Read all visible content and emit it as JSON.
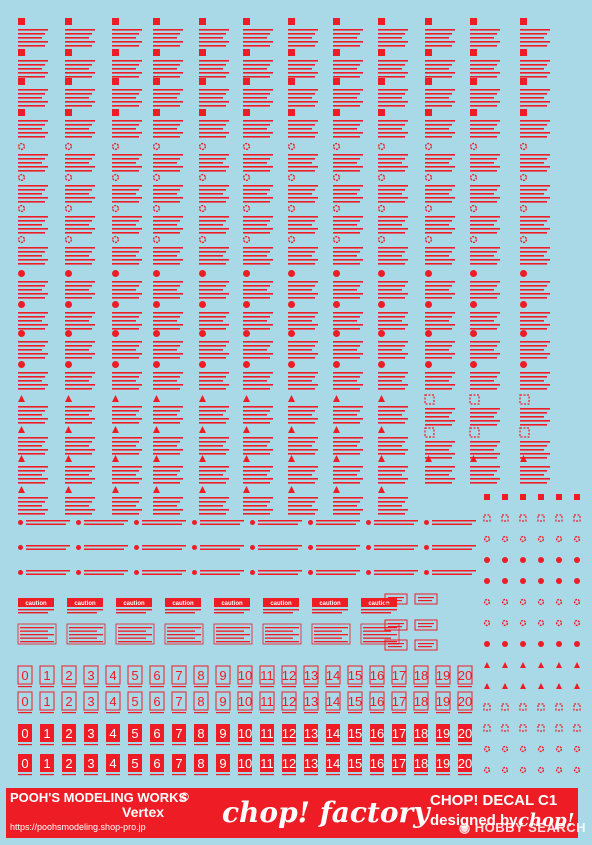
{
  "sheet": {
    "caution_text": "caution",
    "numbers": [
      "0",
      "1",
      "2",
      "3",
      "4",
      "5",
      "6",
      "7",
      "8",
      "9",
      "10",
      "11",
      "12",
      "13",
      "14",
      "15",
      "16",
      "17",
      "18",
      "19",
      "20"
    ],
    "colors": {
      "background": "#a9d8e6",
      "decal_red": "#ee1c25",
      "white": "#ffffff"
    }
  },
  "footer": {
    "maker": "POOH'S MODELING WORKS",
    "copyright_mark": "©",
    "vertex": "Vertex",
    "url": "https://poohsmodeling.shop-pro.jp",
    "chop_factory": "chop! factory",
    "decal_title": "CHOP! DECAL C1",
    "designed_by": "designed by",
    "signature": "chop!"
  },
  "watermark": {
    "text": "HOBBY SEARCH",
    "icon": "hobby-search-logo-icon"
  }
}
